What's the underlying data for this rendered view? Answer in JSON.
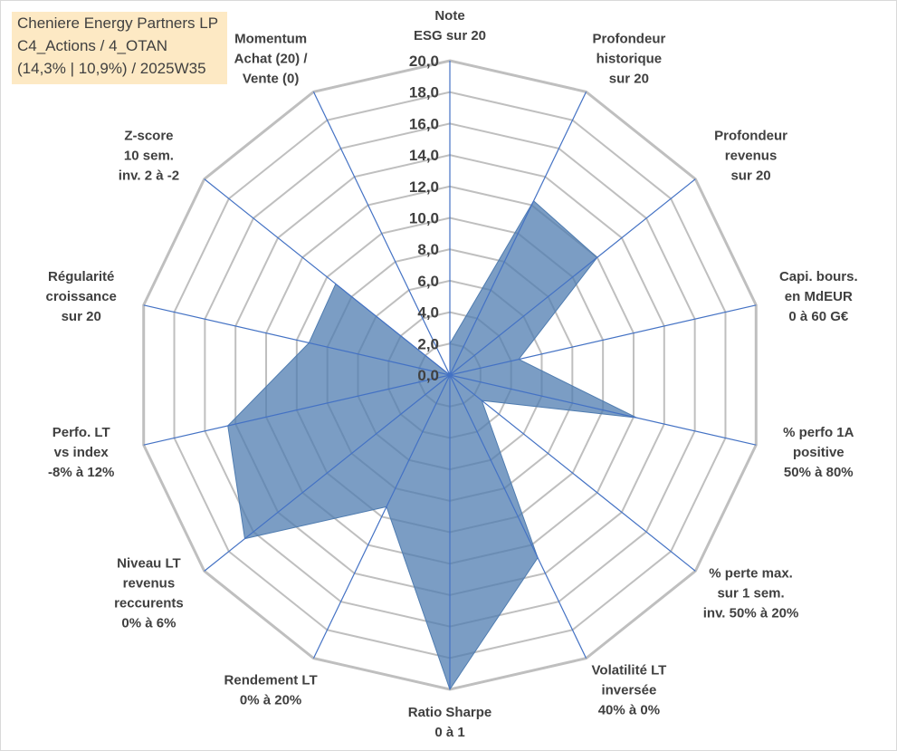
{
  "header": {
    "line1": "Cheniere Energy Partners LP",
    "line2": "C4_Actions / 4_OTAN",
    "line3": "(14,3% | 10,9%) / 2025W35"
  },
  "chart_data": {
    "type": "radar",
    "rmax": 20,
    "rticks": [
      "0,0",
      "2,0",
      "4,0",
      "6,0",
      "8,0",
      "10,0",
      "12,0",
      "14,0",
      "16,0",
      "18,0",
      "20,0"
    ],
    "categories": [
      [
        "Note",
        "ESG sur 20"
      ],
      [
        "Profondeur",
        "historique",
        "sur 20"
      ],
      [
        "Profondeur",
        "revenus",
        "sur 20"
      ],
      [
        "Capi. bours.",
        "en MdEUR",
        "0 à 60 G€"
      ],
      [
        "% perfo 1A",
        "positive",
        "50% à 80%"
      ],
      [
        "% perte max.",
        "sur 1 sem.",
        "inv. 50% à 20%"
      ],
      [
        "Volatilité LT",
        "inversée",
        "40% à 0%"
      ],
      [
        "Ratio Sharpe",
        "0 à 1"
      ],
      [
        "Rendement LT",
        "0% à 20%"
      ],
      [
        "Niveau LT",
        "revenus",
        "reccurents",
        "0% à 6%"
      ],
      [
        "Perfo. LT",
        "vs index",
        "-8% à 12%"
      ],
      [
        "Régularité",
        "croissance",
        "sur 20"
      ],
      [
        "Z-score",
        "10 sem.",
        "inv. 2 à -2"
      ],
      [
        "Momentum",
        "Achat (20) /",
        "Vente (0)"
      ]
    ],
    "series": [
      {
        "values": [
          2.0,
          12.3,
          12.0,
          4.5,
          12.2,
          2.6,
          12.9,
          20.0,
          9.3,
          16.7,
          14.5,
          9.2,
          9.3,
          0.0
        ]
      }
    ],
    "colors": {
      "fill": "#4f7cb0",
      "grid": "#bfbfbf",
      "spoke": "#4472c4"
    },
    "grid": true
  }
}
